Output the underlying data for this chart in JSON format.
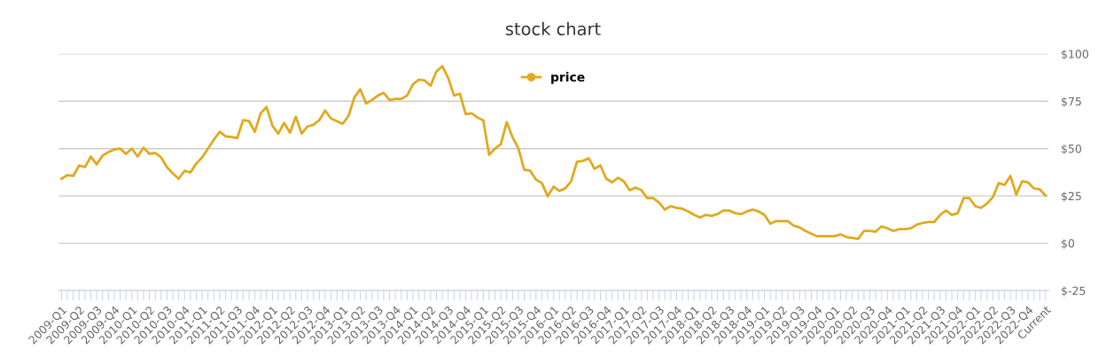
{
  "chart_data": {
    "type": "line",
    "title": "stock chart",
    "categories": [
      "2009-Q1",
      null,
      null,
      "2009-Q2",
      null,
      null,
      "2009-Q3",
      null,
      null,
      "2009-Q4",
      null,
      null,
      "2010-Q1",
      null,
      null,
      "2010-Q2",
      null,
      null,
      "2010-Q3",
      null,
      null,
      "2010-Q4",
      null,
      null,
      "2011-Q1",
      null,
      null,
      "2011-Q2",
      null,
      null,
      "2011-Q3",
      null,
      null,
      "2011-Q4",
      null,
      null,
      "2012-Q1",
      null,
      null,
      "2012-Q2",
      null,
      null,
      "2012-Q3",
      null,
      null,
      "2012-Q4",
      null,
      null,
      "2013-Q1",
      null,
      null,
      "2013-Q2",
      null,
      null,
      "2013-Q3",
      null,
      null,
      "2013-Q4",
      null,
      null,
      "2014-Q1",
      null,
      null,
      "2014-Q2",
      null,
      null,
      "2014-Q3",
      null,
      null,
      "2014-Q4",
      null,
      null,
      "2015-Q1",
      null,
      null,
      "2015-Q2",
      null,
      null,
      "2015-Q3",
      null,
      null,
      "2015-Q4",
      null,
      null,
      "2016-Q1",
      null,
      null,
      "2016-Q2",
      null,
      null,
      "2016-Q3",
      null,
      null,
      "2016-Q4",
      null,
      null,
      "2017-Q1",
      null,
      null,
      "2017-Q2",
      null,
      null,
      "2017-Q3",
      null,
      null,
      "2017-Q4",
      null,
      null,
      "2018-Q1",
      null,
      null,
      "2018-Q2",
      null,
      null,
      "2018-Q3",
      null,
      null,
      "2018-Q4",
      null,
      null,
      "2019-Q1",
      null,
      null,
      "2019-Q2",
      null,
      null,
      "2019-Q3",
      null,
      null,
      "2019-Q4",
      null,
      null,
      "2020-Q1",
      null,
      null,
      "2020-Q2",
      null,
      null,
      "2020-Q3",
      null,
      null,
      "2020-Q4",
      null,
      null,
      "2021-Q1",
      null,
      null,
      "2021-Q2",
      null,
      null,
      "2021-Q3",
      null,
      null,
      "2021-Q4",
      null,
      null,
      "2022-Q1",
      null,
      null,
      "2022-Q2",
      null,
      null,
      "2022-Q3",
      null,
      null,
      "2022-Q4",
      null,
      null,
      "Current"
    ],
    "series": [
      {
        "name": "price",
        "color": "#e0aa1e",
        "values": [
          34.1,
          36,
          35.5,
          41.1,
          40.2,
          45.8,
          41.6,
          46.3,
          48.1,
          49.5,
          50,
          47.2,
          50,
          45.8,
          50.5,
          47.2,
          47.7,
          45.3,
          40.2,
          36.9,
          34.1,
          38.3,
          37.4,
          42.1,
          45.3,
          50,
          54.7,
          58.9,
          56.5,
          56.1,
          55.6,
          65,
          64.5,
          58.9,
          68.7,
          72,
          62.1,
          57.9,
          63.6,
          58.4,
          66.8,
          57.9,
          61.7,
          62.6,
          65,
          70.1,
          65.9,
          64.5,
          63.1,
          67.3,
          77.1,
          81.3,
          73.8,
          75.7,
          78,
          79.4,
          75.7,
          76.2,
          76.2,
          78,
          84,
          86.4,
          86,
          83.2,
          90.7,
          93.5,
          87.4,
          78,
          79,
          68.2,
          68.7,
          66.4,
          65,
          46.7,
          50,
          52.3,
          64,
          56,
          50,
          38.8,
          38.3,
          33.6,
          31.8,
          24.8,
          29.9,
          27.6,
          29,
          32.7,
          43,
          43.5,
          44.9,
          39.3,
          41.1,
          34.1,
          32.2,
          34.6,
          32.7,
          28,
          29.4,
          28,
          23.8,
          23.8,
          21.5,
          17.8,
          19.6,
          18.7,
          18.2,
          16.8,
          15,
          13.6,
          15,
          14.5,
          15.4,
          17.3,
          17.3,
          15.9,
          15.4,
          16.8,
          17.8,
          16.8,
          15,
          10.3,
          11.7,
          11.7,
          11.7,
          9.3,
          8.4,
          6.5,
          5.1,
          3.7,
          3.7,
          3.7,
          3.7,
          4.7,
          3.3,
          2.8,
          2.3,
          6.5,
          6.5,
          6.1,
          8.9,
          7.9,
          6.5,
          7.5,
          7.5,
          7.9,
          9.8,
          10.7,
          11.2,
          11.2,
          15,
          17.3,
          15,
          15.9,
          23.8,
          23.8,
          19.6,
          18.7,
          21,
          24.3,
          31.8,
          30.8,
          35.5,
          25.7,
          32.7,
          32.2,
          29,
          28.5,
          25.2
        ]
      }
    ],
    "ylim": [
      -25,
      100
    ],
    "yticks": [
      {
        "value": -25,
        "label": "$-25"
      },
      {
        "value": 0,
        "label": "$0"
      },
      {
        "value": 25,
        "label": "$25"
      },
      {
        "value": 50,
        "label": "$50"
      },
      {
        "value": 75,
        "label": "$75"
      },
      {
        "value": 100,
        "label": "$100"
      }
    ],
    "grid": "y",
    "legend": "top",
    "marker": "none",
    "line_style": "solid"
  }
}
